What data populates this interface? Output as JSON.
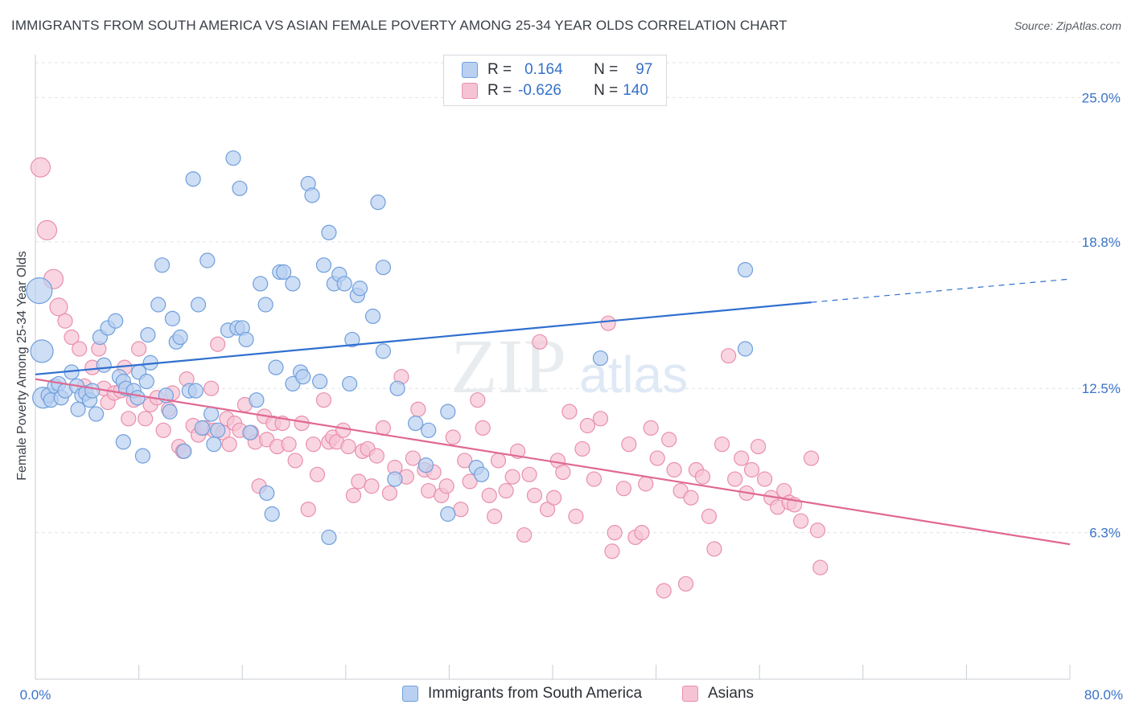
{
  "title": "IMMIGRANTS FROM SOUTH AMERICA VS ASIAN FEMALE POVERTY AMONG 25-34 YEAR OLDS CORRELATION CHART",
  "source": "Source: ZipAtlas.com",
  "watermark": {
    "zip": "ZIP",
    "atlas": "atlas"
  },
  "legend": {
    "rows": [
      {
        "r_label": "R =",
        "r_value": "0.164",
        "n_label": "N =",
        "n_value": "97"
      },
      {
        "r_label": "R =",
        "r_value": "-0.626",
        "n_label": "N =",
        "n_value": "140"
      }
    ]
  },
  "colors": {
    "blue_fill": "#b9d0f1",
    "blue_edge": "#6f9fdc",
    "blue_line": "#2f6fcf",
    "pink_fill": "#f6c3d4",
    "pink_edge": "#e98fae",
    "pink_line": "#e06893",
    "grid": "#dfe3e8",
    "axis_text": "#3a73c9"
  },
  "chart_data": {
    "type": "scatter",
    "title": "IMMIGRANTS FROM SOUTH AMERICA VS ASIAN FEMALE POVERTY AMONG 25-34 YEAR OLDS CORRELATION CHART",
    "xlabel": "",
    "ylabel": "Female Poverty Among 25-34 Year Olds",
    "xlim": [
      0,
      80
    ],
    "ylim": [
      0,
      26.5
    ],
    "x_ticks": [
      "0.0%",
      "80.0%"
    ],
    "y_ticks": [
      {
        "value": 6.3,
        "label": "6.3%"
      },
      {
        "value": 12.5,
        "label": "12.5%"
      },
      {
        "value": 18.8,
        "label": "18.8%"
      },
      {
        "value": 25.0,
        "label": "25.0%"
      }
    ],
    "grid": true,
    "legend_position": "bottom-center",
    "series": [
      {
        "name": "Immigrants from South America",
        "r": 0.164,
        "n": 97,
        "trend": {
          "x0": 0,
          "y0": 13.1,
          "x1": 60,
          "y1": 16.2,
          "dashed_to_x": 80,
          "dashed_to_y": 17.2
        },
        "points": [
          [
            0.3,
            16.7
          ],
          [
            0.5,
            14.1
          ],
          [
            0.6,
            12.1
          ],
          [
            1.0,
            12.2
          ],
          [
            1.2,
            12.0
          ],
          [
            1.5,
            12.6
          ],
          [
            1.8,
            12.7
          ],
          [
            2.0,
            12.1
          ],
          [
            2.3,
            12.4
          ],
          [
            2.8,
            13.2
          ],
          [
            3.2,
            12.6
          ],
          [
            3.3,
            11.6
          ],
          [
            3.6,
            12.2
          ],
          [
            3.9,
            12.3
          ],
          [
            4.2,
            12.0
          ],
          [
            4.4,
            12.4
          ],
          [
            4.7,
            11.4
          ],
          [
            5.0,
            14.7
          ],
          [
            5.3,
            13.5
          ],
          [
            5.6,
            15.1
          ],
          [
            6.2,
            15.4
          ],
          [
            6.5,
            13.0
          ],
          [
            6.8,
            12.8
          ],
          [
            7.0,
            12.5
          ],
          [
            6.8,
            10.2
          ],
          [
            7.6,
            12.4
          ],
          [
            7.9,
            12.1
          ],
          [
            8.0,
            13.2
          ],
          [
            8.3,
            9.6
          ],
          [
            8.6,
            12.8
          ],
          [
            8.7,
            14.8
          ],
          [
            8.9,
            13.6
          ],
          [
            9.5,
            16.1
          ],
          [
            9.8,
            17.8
          ],
          [
            10.1,
            12.2
          ],
          [
            10.4,
            11.5
          ],
          [
            10.6,
            15.5
          ],
          [
            10.9,
            14.5
          ],
          [
            11.2,
            14.7
          ],
          [
            11.5,
            9.8
          ],
          [
            11.9,
            12.4
          ],
          [
            12.2,
            21.5
          ],
          [
            12.4,
            12.4
          ],
          [
            12.6,
            16.1
          ],
          [
            12.9,
            10.8
          ],
          [
            13.3,
            18.0
          ],
          [
            13.6,
            11.4
          ],
          [
            13.8,
            10.1
          ],
          [
            14.1,
            10.7
          ],
          [
            14.9,
            15.0
          ],
          [
            15.3,
            22.4
          ],
          [
            15.6,
            15.1
          ],
          [
            15.8,
            21.1
          ],
          [
            16.0,
            15.1
          ],
          [
            16.3,
            14.6
          ],
          [
            16.6,
            10.6
          ],
          [
            17.1,
            12.0
          ],
          [
            17.4,
            17.0
          ],
          [
            17.8,
            16.1
          ],
          [
            17.9,
            8.0
          ],
          [
            18.3,
            7.1
          ],
          [
            18.6,
            13.4
          ],
          [
            18.9,
            17.5
          ],
          [
            19.2,
            17.5
          ],
          [
            19.9,
            12.7
          ],
          [
            19.9,
            17.0
          ],
          [
            20.5,
            13.2
          ],
          [
            20.7,
            13.0
          ],
          [
            21.1,
            21.3
          ],
          [
            21.4,
            20.8
          ],
          [
            22.0,
            12.8
          ],
          [
            22.3,
            17.8
          ],
          [
            22.7,
            6.1
          ],
          [
            22.7,
            19.2
          ],
          [
            23.1,
            17.0
          ],
          [
            23.5,
            17.4
          ],
          [
            23.9,
            17.0
          ],
          [
            24.3,
            12.7
          ],
          [
            24.5,
            14.6
          ],
          [
            24.9,
            16.5
          ],
          [
            25.1,
            16.8
          ],
          [
            26.1,
            15.6
          ],
          [
            26.5,
            20.5
          ],
          [
            26.9,
            17.7
          ],
          [
            26.9,
            14.1
          ],
          [
            27.8,
            8.6
          ],
          [
            28.0,
            12.5
          ],
          [
            29.4,
            11.0
          ],
          [
            30.2,
            9.2
          ],
          [
            31.9,
            7.1
          ],
          [
            31.9,
            11.5
          ],
          [
            34.1,
            9.1
          ],
          [
            34.5,
            8.8
          ],
          [
            43.7,
            13.8
          ],
          [
            54.9,
            14.2
          ],
          [
            54.9,
            17.6
          ],
          [
            30.4,
            10.7
          ]
        ]
      },
      {
        "name": "Asians",
        "r": -0.626,
        "n": 140,
        "trend": {
          "x0": 0,
          "y0": 12.9,
          "x1": 80,
          "y1": 5.8
        },
        "points": [
          [
            0.4,
            22.0
          ],
          [
            0.9,
            19.3
          ],
          [
            1.4,
            17.2
          ],
          [
            1.8,
            16.0
          ],
          [
            2.3,
            15.4
          ],
          [
            2.8,
            14.7
          ],
          [
            3.4,
            14.2
          ],
          [
            3.8,
            12.6
          ],
          [
            4.4,
            13.4
          ],
          [
            4.9,
            14.2
          ],
          [
            5.3,
            12.5
          ],
          [
            5.6,
            11.9
          ],
          [
            6.1,
            12.3
          ],
          [
            6.6,
            12.4
          ],
          [
            6.9,
            13.4
          ],
          [
            7.2,
            11.2
          ],
          [
            7.6,
            12.0
          ],
          [
            8.0,
            14.2
          ],
          [
            8.5,
            11.2
          ],
          [
            8.9,
            11.8
          ],
          [
            9.4,
            12.1
          ],
          [
            9.9,
            10.7
          ],
          [
            10.3,
            11.6
          ],
          [
            10.6,
            12.3
          ],
          [
            11.1,
            10.0
          ],
          [
            11.4,
            9.8
          ],
          [
            11.7,
            12.9
          ],
          [
            12.2,
            10.9
          ],
          [
            12.6,
            10.5
          ],
          [
            13.1,
            10.8
          ],
          [
            13.6,
            12.5
          ],
          [
            13.8,
            10.7
          ],
          [
            14.1,
            14.4
          ],
          [
            14.5,
            10.6
          ],
          [
            14.8,
            11.2
          ],
          [
            15.0,
            10.1
          ],
          [
            15.4,
            11.0
          ],
          [
            15.8,
            10.7
          ],
          [
            16.2,
            11.8
          ],
          [
            16.7,
            10.6
          ],
          [
            17.0,
            10.2
          ],
          [
            17.3,
            8.3
          ],
          [
            17.7,
            11.3
          ],
          [
            17.9,
            10.3
          ],
          [
            18.4,
            11.0
          ],
          [
            18.7,
            10.0
          ],
          [
            19.1,
            11.0
          ],
          [
            19.6,
            10.1
          ],
          [
            20.1,
            9.4
          ],
          [
            20.6,
            11.0
          ],
          [
            21.1,
            7.3
          ],
          [
            21.5,
            10.1
          ],
          [
            21.8,
            8.8
          ],
          [
            22.3,
            12.0
          ],
          [
            22.7,
            10.2
          ],
          [
            23.0,
            10.4
          ],
          [
            23.3,
            10.2
          ],
          [
            23.8,
            10.7
          ],
          [
            24.2,
            10.0
          ],
          [
            24.6,
            7.9
          ],
          [
            25.0,
            8.5
          ],
          [
            25.3,
            9.8
          ],
          [
            25.7,
            9.9
          ],
          [
            26.0,
            8.3
          ],
          [
            26.4,
            9.6
          ],
          [
            26.9,
            10.8
          ],
          [
            27.4,
            8.0
          ],
          [
            27.8,
            9.1
          ],
          [
            28.3,
            13.0
          ],
          [
            28.7,
            8.7
          ],
          [
            29.2,
            9.5
          ],
          [
            29.6,
            11.6
          ],
          [
            30.1,
            9.0
          ],
          [
            30.4,
            8.1
          ],
          [
            30.8,
            8.9
          ],
          [
            31.4,
            7.9
          ],
          [
            31.8,
            8.3
          ],
          [
            32.3,
            10.4
          ],
          [
            32.9,
            7.3
          ],
          [
            33.2,
            9.4
          ],
          [
            33.6,
            8.5
          ],
          [
            34.2,
            12.0
          ],
          [
            34.6,
            10.8
          ],
          [
            35.1,
            7.9
          ],
          [
            35.5,
            7.0
          ],
          [
            35.8,
            9.4
          ],
          [
            36.4,
            8.1
          ],
          [
            36.9,
            8.7
          ],
          [
            37.3,
            9.8
          ],
          [
            37.8,
            6.2
          ],
          [
            38.2,
            8.8
          ],
          [
            38.6,
            7.9
          ],
          [
            39.0,
            14.5
          ],
          [
            39.6,
            7.3
          ],
          [
            40.1,
            7.8
          ],
          [
            40.4,
            9.4
          ],
          [
            40.8,
            8.9
          ],
          [
            41.3,
            11.5
          ],
          [
            41.8,
            7.0
          ],
          [
            42.3,
            9.9
          ],
          [
            42.7,
            10.9
          ],
          [
            43.2,
            8.6
          ],
          [
            43.7,
            11.2
          ],
          [
            44.3,
            15.3
          ],
          [
            44.6,
            5.5
          ],
          [
            44.8,
            6.3
          ],
          [
            45.5,
            8.2
          ],
          [
            45.9,
            10.1
          ],
          [
            46.4,
            6.1
          ],
          [
            46.9,
            6.3
          ],
          [
            47.2,
            8.4
          ],
          [
            47.6,
            10.8
          ],
          [
            48.1,
            9.5
          ],
          [
            48.6,
            3.8
          ],
          [
            49.0,
            10.3
          ],
          [
            49.4,
            9.0
          ],
          [
            49.9,
            8.1
          ],
          [
            50.3,
            4.1
          ],
          [
            50.7,
            7.8
          ],
          [
            51.1,
            9.0
          ],
          [
            51.6,
            8.7
          ],
          [
            52.1,
            7.0
          ],
          [
            52.5,
            5.6
          ],
          [
            53.1,
            10.1
          ],
          [
            53.6,
            13.9
          ],
          [
            54.1,
            8.6
          ],
          [
            54.6,
            9.5
          ],
          [
            55.0,
            8.0
          ],
          [
            55.4,
            9.0
          ],
          [
            55.9,
            10.0
          ],
          [
            56.4,
            8.6
          ],
          [
            56.9,
            7.8
          ],
          [
            57.4,
            7.4
          ],
          [
            57.9,
            8.1
          ],
          [
            58.3,
            7.6
          ],
          [
            58.7,
            7.5
          ],
          [
            59.2,
            6.8
          ],
          [
            60.0,
            9.5
          ],
          [
            60.5,
            6.4
          ],
          [
            60.7,
            4.8
          ]
        ]
      }
    ]
  },
  "bottom_legend": {
    "items": [
      {
        "label": "Immigrants from South America"
      },
      {
        "label": "Asians"
      }
    ]
  }
}
